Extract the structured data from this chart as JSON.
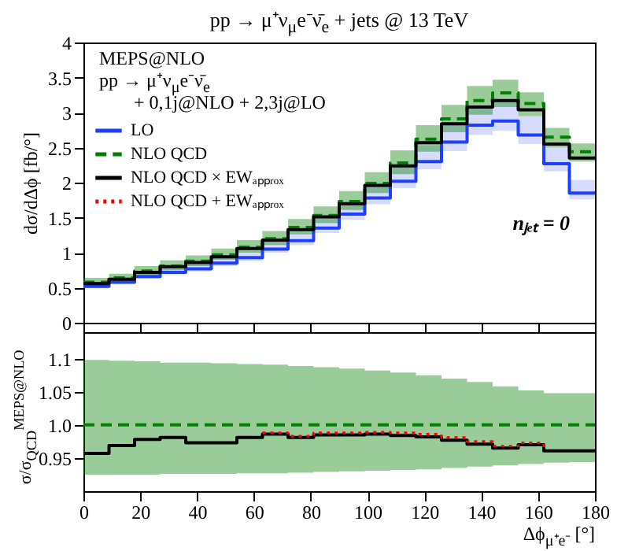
{
  "chart_data": [
    {
      "type": "step",
      "title": "pp → μ⁺ν$_{μ}$e⁻ν̄$_{e}$ + jets @ 13 TeV",
      "ylabel": "dσ/dΔϕ [fb/°]",
      "annotations": [
        "MEPS@NLO",
        "pp → μ⁺ν$_{μ}$e⁻ν̄$_{e}$",
        "+ 0,1j@NLO + 2,3j@LO",
        "nⱼₑₜ = 0"
      ],
      "x": [
        0,
        9,
        18,
        27,
        36,
        45,
        54,
        63,
        72,
        81,
        90,
        99,
        108,
        117,
        126,
        135,
        144,
        153,
        162,
        171,
        180
      ],
      "xlim": [
        0,
        180
      ],
      "xticks": [
        0,
        20,
        40,
        60,
        80,
        100,
        120,
        140,
        160,
        180
      ],
      "ylim": [
        0,
        4
      ],
      "yticks": [
        0,
        0.5,
        1,
        1.5,
        2,
        2.5,
        3,
        3.5,
        4
      ],
      "tick_labels": "y",
      "grid": false,
      "legend": "top left",
      "series": [
        {
          "name": "LO",
          "color": "#1f3fff",
          "line_style": "solid",
          "values": [
            0.52,
            0.58,
            0.66,
            0.72,
            0.77,
            0.85,
            0.93,
            1.05,
            1.17,
            1.35,
            1.55,
            1.78,
            2.02,
            2.3,
            2.58,
            2.82,
            2.88,
            2.68,
            2.27,
            1.85,
            1.85
          ],
          "lower": [
            0.49,
            0.55,
            0.63,
            0.68,
            0.73,
            0.81,
            0.88,
            1.0,
            1.11,
            1.28,
            1.47,
            1.69,
            1.92,
            2.19,
            2.45,
            2.68,
            2.74,
            2.55,
            2.16,
            1.76,
            1.76
          ],
          "upper": [
            0.57,
            0.64,
            0.73,
            0.79,
            0.85,
            0.94,
            1.02,
            1.16,
            1.29,
            1.49,
            1.71,
            1.96,
            2.22,
            2.53,
            2.84,
            3.1,
            3.17,
            2.95,
            2.5,
            2.04,
            2.04
          ]
        },
        {
          "name": "NLO QCD",
          "color": "#008000",
          "line_style": "dashed",
          "values": [
            0.58,
            0.64,
            0.74,
            0.81,
            0.88,
            0.97,
            1.08,
            1.2,
            1.36,
            1.53,
            1.73,
            1.99,
            2.28,
            2.62,
            2.91,
            3.17,
            3.28,
            3.13,
            2.65,
            2.44,
            2.44
          ],
          "lower": [
            0.54,
            0.59,
            0.68,
            0.75,
            0.81,
            0.9,
            1.0,
            1.11,
            1.26,
            1.42,
            1.61,
            1.85,
            2.12,
            2.44,
            2.72,
            2.97,
            3.08,
            2.95,
            2.5,
            2.3,
            2.3
          ],
          "upper": [
            0.64,
            0.7,
            0.81,
            0.89,
            0.96,
            1.06,
            1.18,
            1.31,
            1.48,
            1.66,
            1.88,
            2.15,
            2.46,
            2.82,
            3.11,
            3.38,
            3.47,
            3.29,
            2.78,
            2.56,
            2.56
          ]
        },
        {
          "name": "NLO QCD × EWₐₚₚᵣₒₓ",
          "color": "#000000",
          "line_style": "solid",
          "values": [
            0.56,
            0.62,
            0.72,
            0.8,
            0.86,
            0.94,
            1.06,
            1.18,
            1.33,
            1.51,
            1.7,
            1.96,
            2.24,
            2.57,
            2.84,
            3.08,
            3.17,
            3.04,
            2.55,
            2.35,
            2.35
          ]
        },
        {
          "name": "NLO QCD + EWₐₚₚᵣₒₓ",
          "color": "#ff0000",
          "line_style": "dotted",
          "values": [
            null,
            null,
            null,
            null,
            null,
            null,
            null,
            null,
            null,
            null,
            null,
            null,
            null,
            null,
            null,
            null,
            null,
            null,
            null,
            null,
            null
          ]
        }
      ]
    },
    {
      "type": "step",
      "xlabel": "Δϕ$_{μ⁺e⁻}$ [°]",
      "ylabel": "σ/σ$_{QCD}$$^{MEPS@NLO}$",
      "x": [
        0,
        9,
        18,
        27,
        36,
        45,
        54,
        63,
        72,
        81,
        90,
        99,
        108,
        117,
        126,
        135,
        144,
        153,
        162,
        171,
        180
      ],
      "xlim": [
        0,
        180
      ],
      "xticks": [
        0,
        20,
        40,
        60,
        80,
        100,
        120,
        140,
        160,
        180
      ],
      "ylim": [
        0.9,
        1.14
      ],
      "yticks": [
        0.95,
        {
          "value": 1,
          "label": "1.0"
        },
        1.05,
        1.1
      ],
      "grid": false,
      "series": [
        {
          "color": "#008000",
          "line_style": "dashed",
          "values": [
            1,
            1,
            1,
            1,
            1,
            1,
            1,
            1,
            1,
            1,
            1,
            1,
            1,
            1,
            1,
            1,
            1,
            1,
            1,
            1,
            1
          ],
          "lower": [
            0.925,
            0.925,
            0.925,
            0.926,
            0.926,
            0.926,
            0.927,
            0.927,
            0.928,
            0.929,
            0.93,
            0.931,
            0.932,
            0.933,
            0.935,
            0.937,
            0.939,
            0.941,
            0.943,
            0.944,
            0.944
          ],
          "upper": [
            1.098,
            1.097,
            1.096,
            1.094,
            1.094,
            1.093,
            1.092,
            1.091,
            1.089,
            1.087,
            1.085,
            1.082,
            1.079,
            1.075,
            1.07,
            1.065,
            1.058,
            1.052,
            1.048,
            1.048,
            1.048
          ]
        },
        {
          "color": "#000000",
          "line_style": "solid",
          "values": [
            0.957,
            0.969,
            0.978,
            0.981,
            0.973,
            0.973,
            0.981,
            0.986,
            0.981,
            0.985,
            0.985,
            0.986,
            0.984,
            0.982,
            0.977,
            0.971,
            0.965,
            0.97,
            0.961,
            0.961,
            0.961
          ]
        },
        {
          "color": "#ff0000",
          "line_style": "dotted",
          "values": [
            null,
            null,
            null,
            null,
            null,
            null,
            null,
            0.988,
            0.983,
            0.988,
            0.988,
            0.989,
            0.988,
            0.986,
            0.981,
            0.975,
            0.968,
            0.973,
            0.964,
            null,
            null
          ]
        }
      ]
    }
  ]
}
